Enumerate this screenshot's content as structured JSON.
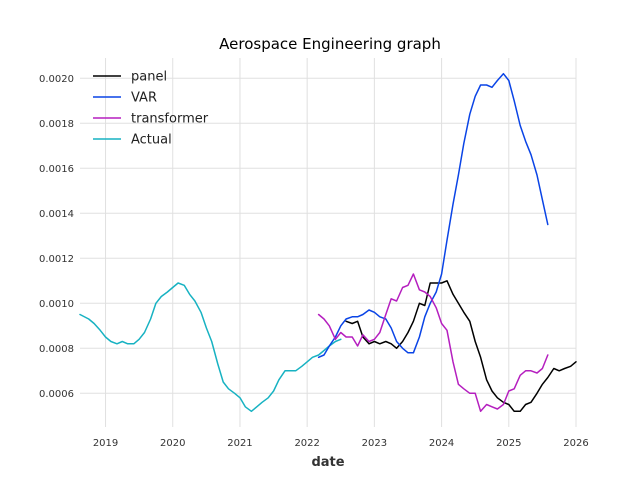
{
  "chart_data": {
    "type": "line",
    "title": "Aerospace Engineering graph",
    "xlabel": "date",
    "ylabel": "",
    "xlim": [
      2018.62,
      2026.0
    ],
    "ylim": [
      0.00045,
      0.00209
    ],
    "x_ticks": [
      2019,
      2020,
      2021,
      2022,
      2023,
      2024,
      2025,
      2026
    ],
    "x_tick_labels": [
      "2019",
      "2020",
      "2021",
      "2022",
      "2023",
      "2024",
      "2025",
      "2026"
    ],
    "y_ticks": [
      0.0006,
      0.0008,
      0.001,
      0.0012,
      0.0014,
      0.0016,
      0.0018,
      0.002
    ],
    "y_tick_labels": [
      "0.0006",
      "0.0008",
      "0.0010",
      "0.0012",
      "0.0014",
      "0.0016",
      "0.0018",
      "0.0020"
    ],
    "grid": true,
    "legend_position": "top-left",
    "series": [
      {
        "name": "panel",
        "color": "#000000",
        "points": [
          [
            2022.58,
            0.00092
          ],
          [
            2022.67,
            0.00091
          ],
          [
            2022.75,
            0.00092
          ],
          [
            2022.83,
            0.00085
          ],
          [
            2022.92,
            0.00082
          ],
          [
            2023.0,
            0.00083
          ],
          [
            2023.08,
            0.00082
          ],
          [
            2023.17,
            0.00083
          ],
          [
            2023.25,
            0.00082
          ],
          [
            2023.33,
            0.0008
          ],
          [
            2023.42,
            0.00083
          ],
          [
            2023.5,
            0.00087
          ],
          [
            2023.58,
            0.00092
          ],
          [
            2023.67,
            0.001
          ],
          [
            2023.75,
            0.00099
          ],
          [
            2023.83,
            0.00109
          ],
          [
            2023.92,
            0.00109
          ],
          [
            2024.0,
            0.00109
          ],
          [
            2024.08,
            0.0011
          ],
          [
            2024.17,
            0.00104
          ],
          [
            2024.25,
            0.001
          ],
          [
            2024.33,
            0.00096
          ],
          [
            2024.42,
            0.00092
          ],
          [
            2024.5,
            0.00083
          ],
          [
            2024.58,
            0.00076
          ],
          [
            2024.67,
            0.00066
          ],
          [
            2024.75,
            0.00061
          ],
          [
            2024.83,
            0.00058
          ],
          [
            2024.92,
            0.00056
          ],
          [
            2025.0,
            0.00055
          ],
          [
            2025.08,
            0.00052
          ],
          [
            2025.17,
            0.00052
          ],
          [
            2025.25,
            0.00055
          ],
          [
            2025.33,
            0.00056
          ],
          [
            2025.42,
            0.0006
          ],
          [
            2025.5,
            0.00064
          ],
          [
            2025.58,
            0.00067
          ],
          [
            2025.67,
            0.00071
          ],
          [
            2025.75,
            0.0007
          ],
          [
            2025.83,
            0.00071
          ],
          [
            2025.92,
            0.00072
          ],
          [
            2026.0,
            0.00074
          ]
        ]
      },
      {
        "name": "VAR",
        "color": "#0a44e6",
        "points": [
          [
            2022.17,
            0.00076
          ],
          [
            2022.25,
            0.00077
          ],
          [
            2022.33,
            0.00081
          ],
          [
            2022.42,
            0.00085
          ],
          [
            2022.5,
            0.0009
          ],
          [
            2022.58,
            0.00093
          ],
          [
            2022.67,
            0.00094
          ],
          [
            2022.75,
            0.00094
          ],
          [
            2022.83,
            0.00095
          ],
          [
            2022.92,
            0.00097
          ],
          [
            2023.0,
            0.00096
          ],
          [
            2023.08,
            0.00094
          ],
          [
            2023.17,
            0.00093
          ],
          [
            2023.25,
            0.00089
          ],
          [
            2023.33,
            0.00083
          ],
          [
            2023.42,
            0.0008
          ],
          [
            2023.5,
            0.00078
          ],
          [
            2023.58,
            0.00078
          ],
          [
            2023.67,
            0.00085
          ],
          [
            2023.75,
            0.00094
          ],
          [
            2023.83,
            0.001
          ],
          [
            2023.92,
            0.00105
          ],
          [
            2024.0,
            0.00113
          ],
          [
            2024.08,
            0.00128
          ],
          [
            2024.17,
            0.00144
          ],
          [
            2024.25,
            0.00157
          ],
          [
            2024.33,
            0.00171
          ],
          [
            2024.42,
            0.00184
          ],
          [
            2024.5,
            0.00192
          ],
          [
            2024.58,
            0.00197
          ],
          [
            2024.67,
            0.00197
          ],
          [
            2024.75,
            0.00196
          ],
          [
            2024.83,
            0.00199
          ],
          [
            2024.92,
            0.00202
          ],
          [
            2025.0,
            0.00199
          ],
          [
            2025.08,
            0.0019
          ],
          [
            2025.17,
            0.00179
          ],
          [
            2025.25,
            0.00172
          ],
          [
            2025.33,
            0.00166
          ],
          [
            2025.42,
            0.00157
          ],
          [
            2025.5,
            0.00146
          ],
          [
            2025.58,
            0.00135
          ]
        ]
      },
      {
        "name": "transformer",
        "color": "#b51fbf",
        "points": [
          [
            2022.17,
            0.00095
          ],
          [
            2022.25,
            0.00093
          ],
          [
            2022.33,
            0.0009
          ],
          [
            2022.42,
            0.00084
          ],
          [
            2022.5,
            0.00087
          ],
          [
            2022.58,
            0.00085
          ],
          [
            2022.67,
            0.00085
          ],
          [
            2022.75,
            0.00081
          ],
          [
            2022.83,
            0.00086
          ],
          [
            2022.92,
            0.00083
          ],
          [
            2023.0,
            0.00084
          ],
          [
            2023.08,
            0.00087
          ],
          [
            2023.17,
            0.00095
          ],
          [
            2023.25,
            0.00102
          ],
          [
            2023.33,
            0.00101
          ],
          [
            2023.42,
            0.00107
          ],
          [
            2023.5,
            0.00108
          ],
          [
            2023.58,
            0.00113
          ],
          [
            2023.67,
            0.00106
          ],
          [
            2023.75,
            0.00105
          ],
          [
            2023.83,
            0.00103
          ],
          [
            2023.92,
            0.00098
          ],
          [
            2024.0,
            0.00091
          ],
          [
            2024.08,
            0.00088
          ],
          [
            2024.17,
            0.00074
          ],
          [
            2024.25,
            0.00064
          ],
          [
            2024.33,
            0.00062
          ],
          [
            2024.42,
            0.0006
          ],
          [
            2024.5,
            0.0006
          ],
          [
            2024.58,
            0.00052
          ],
          [
            2024.67,
            0.00055
          ],
          [
            2024.75,
            0.00054
          ],
          [
            2024.83,
            0.00053
          ],
          [
            2024.92,
            0.00055
          ],
          [
            2025.0,
            0.00061
          ],
          [
            2025.08,
            0.00062
          ],
          [
            2025.17,
            0.00068
          ],
          [
            2025.25,
            0.0007
          ],
          [
            2025.33,
            0.0007
          ],
          [
            2025.42,
            0.00069
          ],
          [
            2025.5,
            0.00071
          ],
          [
            2025.58,
            0.00077
          ]
        ]
      },
      {
        "name": "Actual",
        "color": "#17b2c2",
        "points": [
          [
            2018.62,
            0.00095
          ],
          [
            2018.75,
            0.00093
          ],
          [
            2018.83,
            0.00091
          ],
          [
            2018.92,
            0.00088
          ],
          [
            2019.0,
            0.00085
          ],
          [
            2019.08,
            0.00083
          ],
          [
            2019.17,
            0.00082
          ],
          [
            2019.25,
            0.00083
          ],
          [
            2019.33,
            0.00082
          ],
          [
            2019.42,
            0.00082
          ],
          [
            2019.5,
            0.00084
          ],
          [
            2019.58,
            0.00087
          ],
          [
            2019.67,
            0.00093
          ],
          [
            2019.75,
            0.001
          ],
          [
            2019.83,
            0.00103
          ],
          [
            2019.92,
            0.00105
          ],
          [
            2020.0,
            0.00107
          ],
          [
            2020.08,
            0.00109
          ],
          [
            2020.17,
            0.00108
          ],
          [
            2020.25,
            0.00104
          ],
          [
            2020.33,
            0.00101
          ],
          [
            2020.42,
            0.00096
          ],
          [
            2020.5,
            0.00089
          ],
          [
            2020.58,
            0.00083
          ],
          [
            2020.67,
            0.00073
          ],
          [
            2020.75,
            0.00065
          ],
          [
            2020.83,
            0.00062
          ],
          [
            2020.92,
            0.0006
          ],
          [
            2021.0,
            0.00058
          ],
          [
            2021.08,
            0.00054
          ],
          [
            2021.17,
            0.00052
          ],
          [
            2021.25,
            0.00054
          ],
          [
            2021.33,
            0.00056
          ],
          [
            2021.42,
            0.00058
          ],
          [
            2021.5,
            0.00061
          ],
          [
            2021.58,
            0.00066
          ],
          [
            2021.67,
            0.0007
          ],
          [
            2021.75,
            0.0007
          ],
          [
            2021.83,
            0.0007
          ],
          [
            2021.92,
            0.00072
          ],
          [
            2022.0,
            0.00074
          ],
          [
            2022.08,
            0.00076
          ],
          [
            2022.17,
            0.00077
          ],
          [
            2022.25,
            0.00079
          ],
          [
            2022.33,
            0.00081
          ],
          [
            2022.42,
            0.00083
          ],
          [
            2022.5,
            0.00084
          ]
        ]
      }
    ]
  }
}
